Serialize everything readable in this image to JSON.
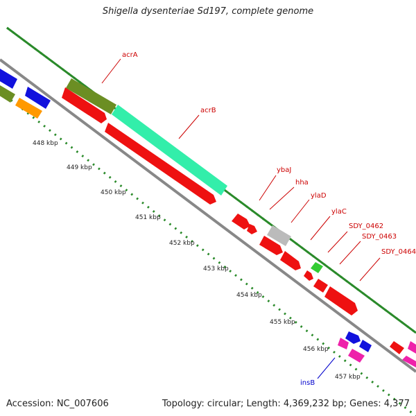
{
  "title": "Shigella dysenteriae Sd197, complete genome",
  "footer": {
    "accession": "Accession: NC_007606",
    "summary": "Topology: circular; Length: 4,369,232 bp; Genes: 4,377"
  },
  "ticks": [
    {
      "label": "448 kbp"
    },
    {
      "label": "449 kbp"
    },
    {
      "label": "450 kbp"
    },
    {
      "label": "451 kbp"
    },
    {
      "label": "452 kbp"
    },
    {
      "label": "453 kbp"
    },
    {
      "label": "454 kbp"
    },
    {
      "label": "455 kbp"
    },
    {
      "label": "456 kbp"
    },
    {
      "label": "457 kbp"
    }
  ],
  "gene_labels": [
    {
      "name": "acrA",
      "color": "#cc0000"
    },
    {
      "name": "acrB",
      "color": "#cc0000"
    },
    {
      "name": "ybaJ",
      "color": "#cc0000"
    },
    {
      "name": "hha",
      "color": "#cc0000"
    },
    {
      "name": "ylaD",
      "color": "#cc0000"
    },
    {
      "name": "ylaC",
      "color": "#cc0000"
    },
    {
      "name": "SDY_0462",
      "color": "#cc0000"
    },
    {
      "name": "SDY_0463",
      "color": "#cc0000"
    },
    {
      "name": "SDY_0464",
      "color": "#cc0000"
    },
    {
      "name": "insB",
      "color": "#0000cc"
    }
  ],
  "colors": {
    "backbone": "#888888",
    "tick_dots": "#2a8a2a",
    "gene_red": "#ee1111",
    "gene_cyan": "#33eeaa",
    "gene_olive": "#6b8e23",
    "gene_blue": "#1111dd",
    "gene_orange": "#ff9900",
    "gene_grey": "#bbbbbb",
    "gene_green": "#33cc33",
    "gene_pink": "#ee22aa"
  }
}
